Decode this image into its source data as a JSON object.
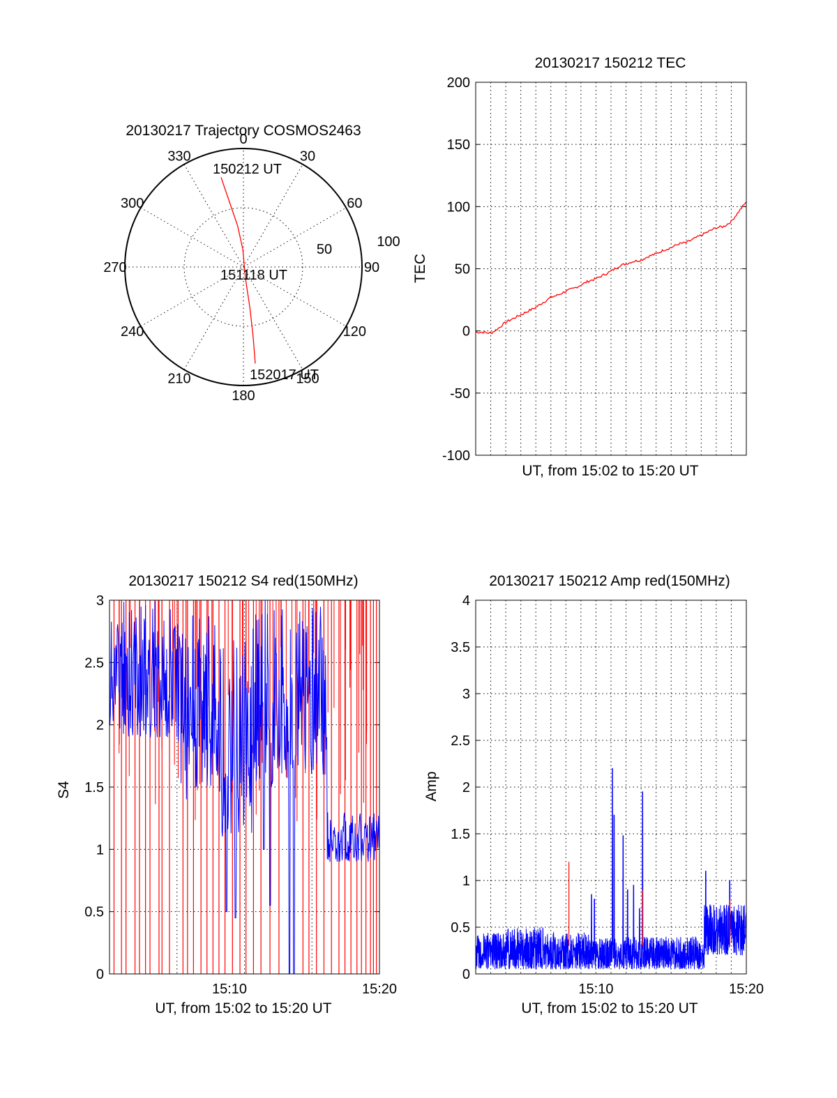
{
  "chart_data": [
    {
      "id": "trajectory",
      "type": "polar",
      "title": "20130217 Trajectory COSMOS2463",
      "angle_labels": [
        "0",
        "30",
        "60",
        "90",
        "120",
        "150",
        "180",
        "210",
        "240",
        "270",
        "300",
        "330"
      ],
      "radial_labels": [
        "50",
        "100"
      ],
      "rlim": [
        0,
        100
      ],
      "track_color": "#ff0000",
      "track": [
        {
          "az": 346,
          "r": 78
        },
        {
          "az": 348,
          "r": 55
        },
        {
          "az": 352,
          "r": 35
        },
        {
          "az": 358,
          "r": 15
        },
        {
          "az": 170,
          "r": 10
        },
        {
          "az": 171,
          "r": 35
        },
        {
          "az": 172,
          "r": 58
        },
        {
          "az": 173,
          "r": 82
        }
      ],
      "annotations": [
        {
          "text": "150212 UT",
          "az": 346,
          "r": 78
        },
        {
          "text": "151118 UT",
          "az": 0,
          "r": 0
        },
        {
          "text": "152017 UT",
          "az": 173,
          "r": 82
        }
      ]
    },
    {
      "id": "tec",
      "type": "line",
      "title": "20130217 150212 TEC",
      "xlabel": "UT, from 15:02 to 15:20 UT",
      "ylabel": "TEC",
      "xlim": [
        0,
        18
      ],
      "ylim": [
        -100,
        200
      ],
      "yticks": [
        "200",
        "150",
        "100",
        "50",
        "0",
        "-50",
        "-100"
      ],
      "series": [
        {
          "color": "#ff0000",
          "x": [
            0,
            0.5,
            1,
            1.5,
            2,
            2.5,
            3,
            3.5,
            4,
            4.5,
            5,
            5.5,
            6,
            6.5,
            7,
            7.5,
            8,
            8.5,
            9,
            9.5,
            10,
            10.5,
            11,
            11.5,
            12,
            12.5,
            13,
            13.5,
            14,
            14.5,
            15,
            15.5,
            16,
            16.5,
            17,
            17.5,
            18
          ],
          "y": [
            -1,
            -1,
            -2,
            2,
            7,
            10,
            13,
            16,
            19,
            23,
            27,
            29,
            32,
            34,
            37,
            40,
            42,
            45,
            48,
            52,
            54,
            56,
            57,
            60,
            62,
            65,
            67,
            70,
            71,
            74,
            77,
            80,
            83,
            84,
            88,
            96,
            104
          ]
        }
      ]
    },
    {
      "id": "s4",
      "type": "line",
      "title": "20130217 150212 S4 red(150MHz)",
      "xlabel": "UT, from 15:02 to 15:20 UT",
      "ylabel": "S4",
      "xlim": [
        0,
        18
      ],
      "ylim": [
        0,
        3
      ],
      "yticks": [
        "3",
        "2.5",
        "2",
        "1.5",
        "1",
        "0.5",
        "0"
      ],
      "xticks": [
        {
          "x": 8,
          "label": "15:10"
        },
        {
          "x": 18,
          "label": "15:20"
        }
      ],
      "series": [
        {
          "name": "",
          "color": "#ff0000",
          "style": "dropouts",
          "x": [
            0.3,
            0.8,
            1.1,
            1.7,
            2.0,
            2.4,
            2.7,
            3.3,
            3.5,
            4.0,
            4.9,
            5.2,
            5.6,
            6.1,
            6.5,
            6.9,
            7.3,
            7.7,
            8.2,
            8.7,
            9.1,
            9.6,
            10.1,
            10.7,
            11.3,
            12.9,
            13.3,
            13.8,
            14.3,
            14.8,
            15.3,
            15.7,
            16.1,
            16.5,
            16.8,
            17.1,
            17.4,
            17.6,
            17.8
          ]
        },
        {
          "name": "",
          "color": "#0000ff",
          "style": "noisy",
          "segments": [
            {
              "x0": 0,
              "x1": 4.5,
              "low": 1.9,
              "high": 3.0
            },
            {
              "x0": 4.5,
              "x1": 7.5,
              "low": 1.4,
              "high": 2.9
            },
            {
              "x0": 7.5,
              "x1": 9.5,
              "low": 1.1,
              "high": 2.7
            },
            {
              "x0": 9.5,
              "x1": 12.0,
              "low": 1.5,
              "high": 3.0
            },
            {
              "x0": 12.0,
              "x1": 14.5,
              "low": 1.6,
              "high": 3.0
            },
            {
              "x0": 14.5,
              "x1": 18.0,
              "low": 0.9,
              "high": 1.3
            }
          ],
          "dips": [
            {
              "x": 7.8,
              "y": 0.5
            },
            {
              "x": 8.4,
              "y": 0.45
            },
            {
              "x": 10.3,
              "y": 1.0
            },
            {
              "x": 10.7,
              "y": 0.55
            },
            {
              "x": 12.0,
              "y": 0
            },
            {
              "x": 12.3,
              "y": 0
            }
          ]
        }
      ]
    },
    {
      "id": "amp",
      "type": "line",
      "title": "20130217 150212 Amp red(150MHz)",
      "xlabel": "UT, from 15:02 to 15:20 UT",
      "ylabel": "Amp",
      "xlim": [
        0,
        18
      ],
      "ylim": [
        0,
        4
      ],
      "yticks": [
        "4",
        "3.5",
        "3",
        "2.5",
        "2",
        "1.5",
        "1",
        "0.5",
        "0"
      ],
      "xticks": [
        {
          "x": 8,
          "label": "15:10"
        },
        {
          "x": 18,
          "label": "15:20"
        }
      ],
      "series": [
        {
          "name": "",
          "color": "#0000ff",
          "style": "noisy",
          "segments": [
            {
              "x0": 0,
              "x1": 2.0,
              "low": 0.05,
              "high": 0.45
            },
            {
              "x0": 2.0,
              "x1": 4.5,
              "low": 0.05,
              "high": 0.5
            },
            {
              "x0": 4.5,
              "x1": 7.5,
              "low": 0.05,
              "high": 0.45
            },
            {
              "x0": 7.5,
              "x1": 15.2,
              "low": 0.05,
              "high": 0.4
            },
            {
              "x0": 15.2,
              "x1": 18.0,
              "low": 0.2,
              "high": 0.75
            }
          ],
          "peaks": [
            {
              "x": 7.7,
              "y": 0.85
            },
            {
              "x": 7.9,
              "y": 0.8
            },
            {
              "x": 9.1,
              "y": 2.2
            },
            {
              "x": 9.2,
              "y": 1.7
            },
            {
              "x": 9.8,
              "y": 1.48
            },
            {
              "x": 10.1,
              "y": 0.9
            },
            {
              "x": 10.5,
              "y": 0.95
            },
            {
              "x": 10.9,
              "y": 0.7
            },
            {
              "x": 11.1,
              "y": 1.95
            },
            {
              "x": 15.3,
              "y": 1.1
            },
            {
              "x": 16.9,
              "y": 1.0
            }
          ]
        },
        {
          "name": "",
          "color": "#ff0000",
          "style": "spikes",
          "points": [
            {
              "x": 6.2,
              "y": 1.2
            },
            {
              "x": 11.1,
              "y": 0.9
            },
            {
              "x": 16.9,
              "y": 0.8
            }
          ]
        }
      ]
    }
  ]
}
